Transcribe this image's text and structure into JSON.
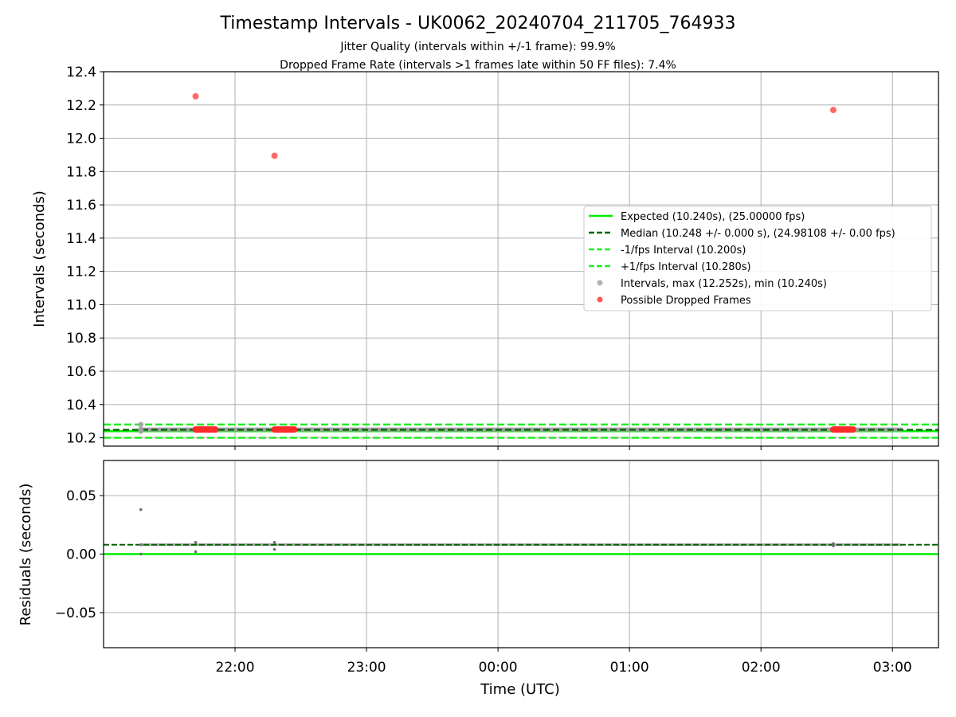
{
  "chart_data": {
    "title": "Timestamp Intervals - UK0062_20240704_211705_764933",
    "subtitle_lines": [
      "Jitter Quality (intervals within +/-1 frame): 99.9%",
      "Dropped Frame Rate (intervals >1 frames late within 50 FF files): 7.4%"
    ],
    "colors": {
      "expected": "#00ee00",
      "median": "#006400",
      "interval_band": "#22ee22",
      "intervals": "#a0a0a0",
      "dropped": "#ff2a2a",
      "residual_points": "#707070",
      "grid": "#b0b0b0"
    },
    "top_panel": {
      "type": "scatter",
      "ylabel": "Intervals (seconds)",
      "ylim": [
        10.15,
        12.4
      ],
      "yticks": [
        10.2,
        10.4,
        10.6,
        10.8,
        11.0,
        11.2,
        11.4,
        11.6,
        11.8,
        12.0,
        12.2,
        12.4
      ],
      "ytick_labels": [
        "10.2",
        "10.4",
        "10.6",
        "10.8",
        "11.0",
        "11.2",
        "11.4",
        "11.6",
        "11.8",
        "12.0",
        "12.2",
        "12.4"
      ],
      "grid": true,
      "legend_position": "center-right",
      "hlines": {
        "expected": 10.24,
        "median": 10.248,
        "minus_one_fps": 10.2,
        "plus_one_fps": 10.28
      },
      "intervals_points": [
        {
          "x": "21:17",
          "y": 10.28
        },
        {
          "x": "21:17",
          "y": 10.24
        },
        {
          "x": "21:17",
          "y": 10.25
        }
      ],
      "dropped_points": [
        {
          "x": "21:42",
          "y": 12.252
        },
        {
          "x": "22:18",
          "y": 11.895
        },
        {
          "x": "02:33",
          "y": 12.17
        }
      ],
      "dropped_clusters": [
        {
          "start": "21:42",
          "end": "21:51",
          "y": 10.25
        },
        {
          "start": "22:18",
          "end": "22:27",
          "y": 10.25
        },
        {
          "start": "02:33",
          "end": "02:42",
          "y": 10.25
        }
      ],
      "legend": [
        {
          "label": "Expected (10.240s), (25.00000 fps)",
          "style": "solid-line",
          "color": "#00ee00"
        },
        {
          "label": "Median (10.248 +/- 0.000 s), (24.98108 +/- 0.00 fps)",
          "style": "dashed-line",
          "color": "#006400"
        },
        {
          "label": "-1/fps Interval (10.200s)",
          "style": "dashed-line",
          "color": "#22ee22"
        },
        {
          "label": "+1/fps Interval (10.280s)",
          "style": "dashed-line",
          "color": "#22ee22"
        },
        {
          "label": "Intervals, max (12.252s), min (10.240s)",
          "style": "marker",
          "color": "#a0a0a0"
        },
        {
          "label": "Possible Dropped Frames",
          "style": "marker",
          "color": "#ff2a2a"
        }
      ]
    },
    "bottom_panel": {
      "type": "scatter",
      "ylabel": "Residuals (seconds)",
      "ylim": [
        -0.08,
        0.08
      ],
      "yticks": [
        0.05,
        0.0,
        -0.05
      ],
      "ytick_labels": [
        "0.05",
        "0.00",
        "−0.05"
      ],
      "grid": true,
      "hlines": {
        "expected": 0.0,
        "median": 0.008
      },
      "points": [
        {
          "x": "21:17",
          "y": 0.038
        },
        {
          "x": "21:17",
          "y": 0.008
        },
        {
          "x": "21:17",
          "y": 0.0
        },
        {
          "x": "21:42",
          "y": 0.01
        },
        {
          "x": "21:42",
          "y": 0.002
        },
        {
          "x": "22:18",
          "y": 0.01
        },
        {
          "x": "22:18",
          "y": 0.004
        },
        {
          "x": "02:33",
          "y": 0.009
        },
        {
          "x": "02:33",
          "y": 0.007
        }
      ]
    },
    "xaxis": {
      "label": "Time (UTC)",
      "range": [
        "21:00",
        "03:21"
      ],
      "ticks": [
        "22:00",
        "23:00",
        "00:00",
        "01:00",
        "02:00",
        "03:00"
      ],
      "data_span": [
        "21:17",
        "03:04"
      ]
    }
  }
}
